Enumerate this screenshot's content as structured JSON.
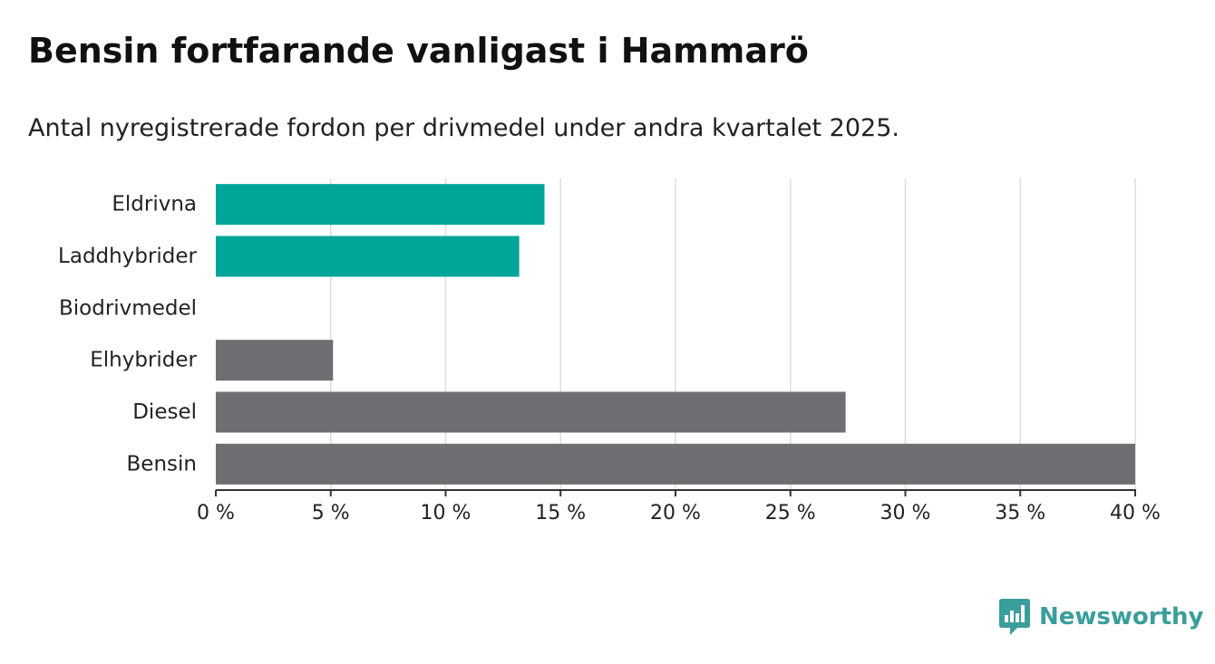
{
  "header": {
    "title": "Bensin fortfarande vanligast i Hammarö",
    "subtitle": "Antal nyregistrerade fordon per drivmedel under andra kvartalet 2025."
  },
  "brand": {
    "name": "Newsworthy",
    "icon": "newsworthy-logo-icon"
  },
  "colors": {
    "highlight": "#00a59a",
    "other": "#6f6e73",
    "grid": "#dddddd",
    "axis": "#333333"
  },
  "chart_data": {
    "type": "bar",
    "orientation": "horizontal",
    "categories": [
      "Eldrivna",
      "Laddhybrider",
      "Biodrivmedel",
      "Elhybrider",
      "Diesel",
      "Bensin"
    ],
    "values": [
      14.3,
      13.2,
      0,
      5.1,
      27.4,
      40.0
    ],
    "highlighted": [
      "Eldrivna",
      "Laddhybrider"
    ],
    "xlim": [
      0,
      40
    ],
    "ticks": [
      0,
      5,
      10,
      15,
      20,
      25,
      30,
      35,
      40
    ],
    "tick_labels": [
      "0 %",
      "5 %",
      "10 %",
      "15 %",
      "20 %",
      "25 %",
      "30 %",
      "35 %",
      "40 %"
    ],
    "grid": true,
    "legend": "none"
  }
}
